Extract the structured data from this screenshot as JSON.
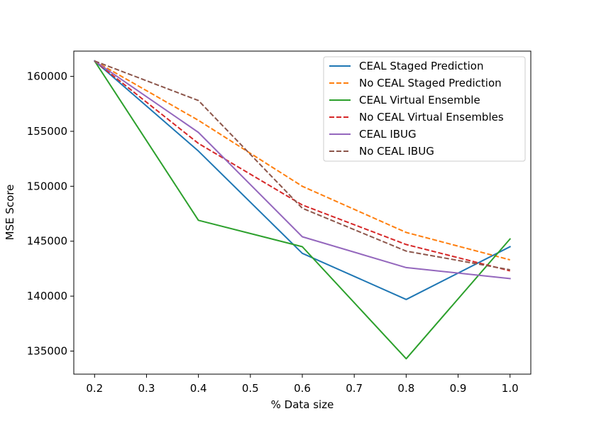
{
  "chart_data": {
    "type": "line",
    "title": "",
    "xlabel": "% Data size",
    "ylabel": "MSE Score",
    "xlim": [
      0.16,
      1.04
    ],
    "ylim": [
      132900,
      162300
    ],
    "xticks": [
      0.2,
      0.3,
      0.4,
      0.5,
      0.6,
      0.7,
      0.8,
      0.9,
      1.0
    ],
    "xtick_labels": [
      "0.2",
      "0.3",
      "0.4",
      "0.5",
      "0.6",
      "0.7",
      "0.8",
      "0.9",
      "1.0"
    ],
    "yticks": [
      135000,
      140000,
      145000,
      150000,
      155000,
      160000
    ],
    "ytick_labels": [
      "135000",
      "140000",
      "145000",
      "150000",
      "155000",
      "160000"
    ],
    "grid": false,
    "legend_position": "top-right",
    "x": [
      0.2,
      0.4,
      0.6,
      0.8,
      1.0
    ],
    "series": [
      {
        "name": "CEAL Staged Prediction",
        "color": "#1f77b4",
        "dashed": false,
        "values": [
          161400,
          153200,
          143900,
          139700,
          144500
        ]
      },
      {
        "name": "No CEAL Staged Prediction",
        "color": "#ff7f0e",
        "dashed": true,
        "values": [
          161400,
          156000,
          150000,
          145800,
          143300
        ]
      },
      {
        "name": "CEAL Virtual Ensemble",
        "color": "#2ca02c",
        "dashed": false,
        "values": [
          161400,
          146900,
          144500,
          134300,
          145200
        ]
      },
      {
        "name": "No CEAL Virtual Ensembles",
        "color": "#d62728",
        "dashed": true,
        "values": [
          161400,
          153900,
          148300,
          144700,
          142300
        ]
      },
      {
        "name": "CEAL IBUG",
        "color": "#9467bd",
        "dashed": false,
        "values": [
          161400,
          154900,
          145400,
          142600,
          141600
        ]
      },
      {
        "name": "No CEAL IBUG",
        "color": "#8c564b",
        "dashed": true,
        "values": [
          161400,
          157800,
          148000,
          144100,
          142400
        ]
      }
    ]
  }
}
